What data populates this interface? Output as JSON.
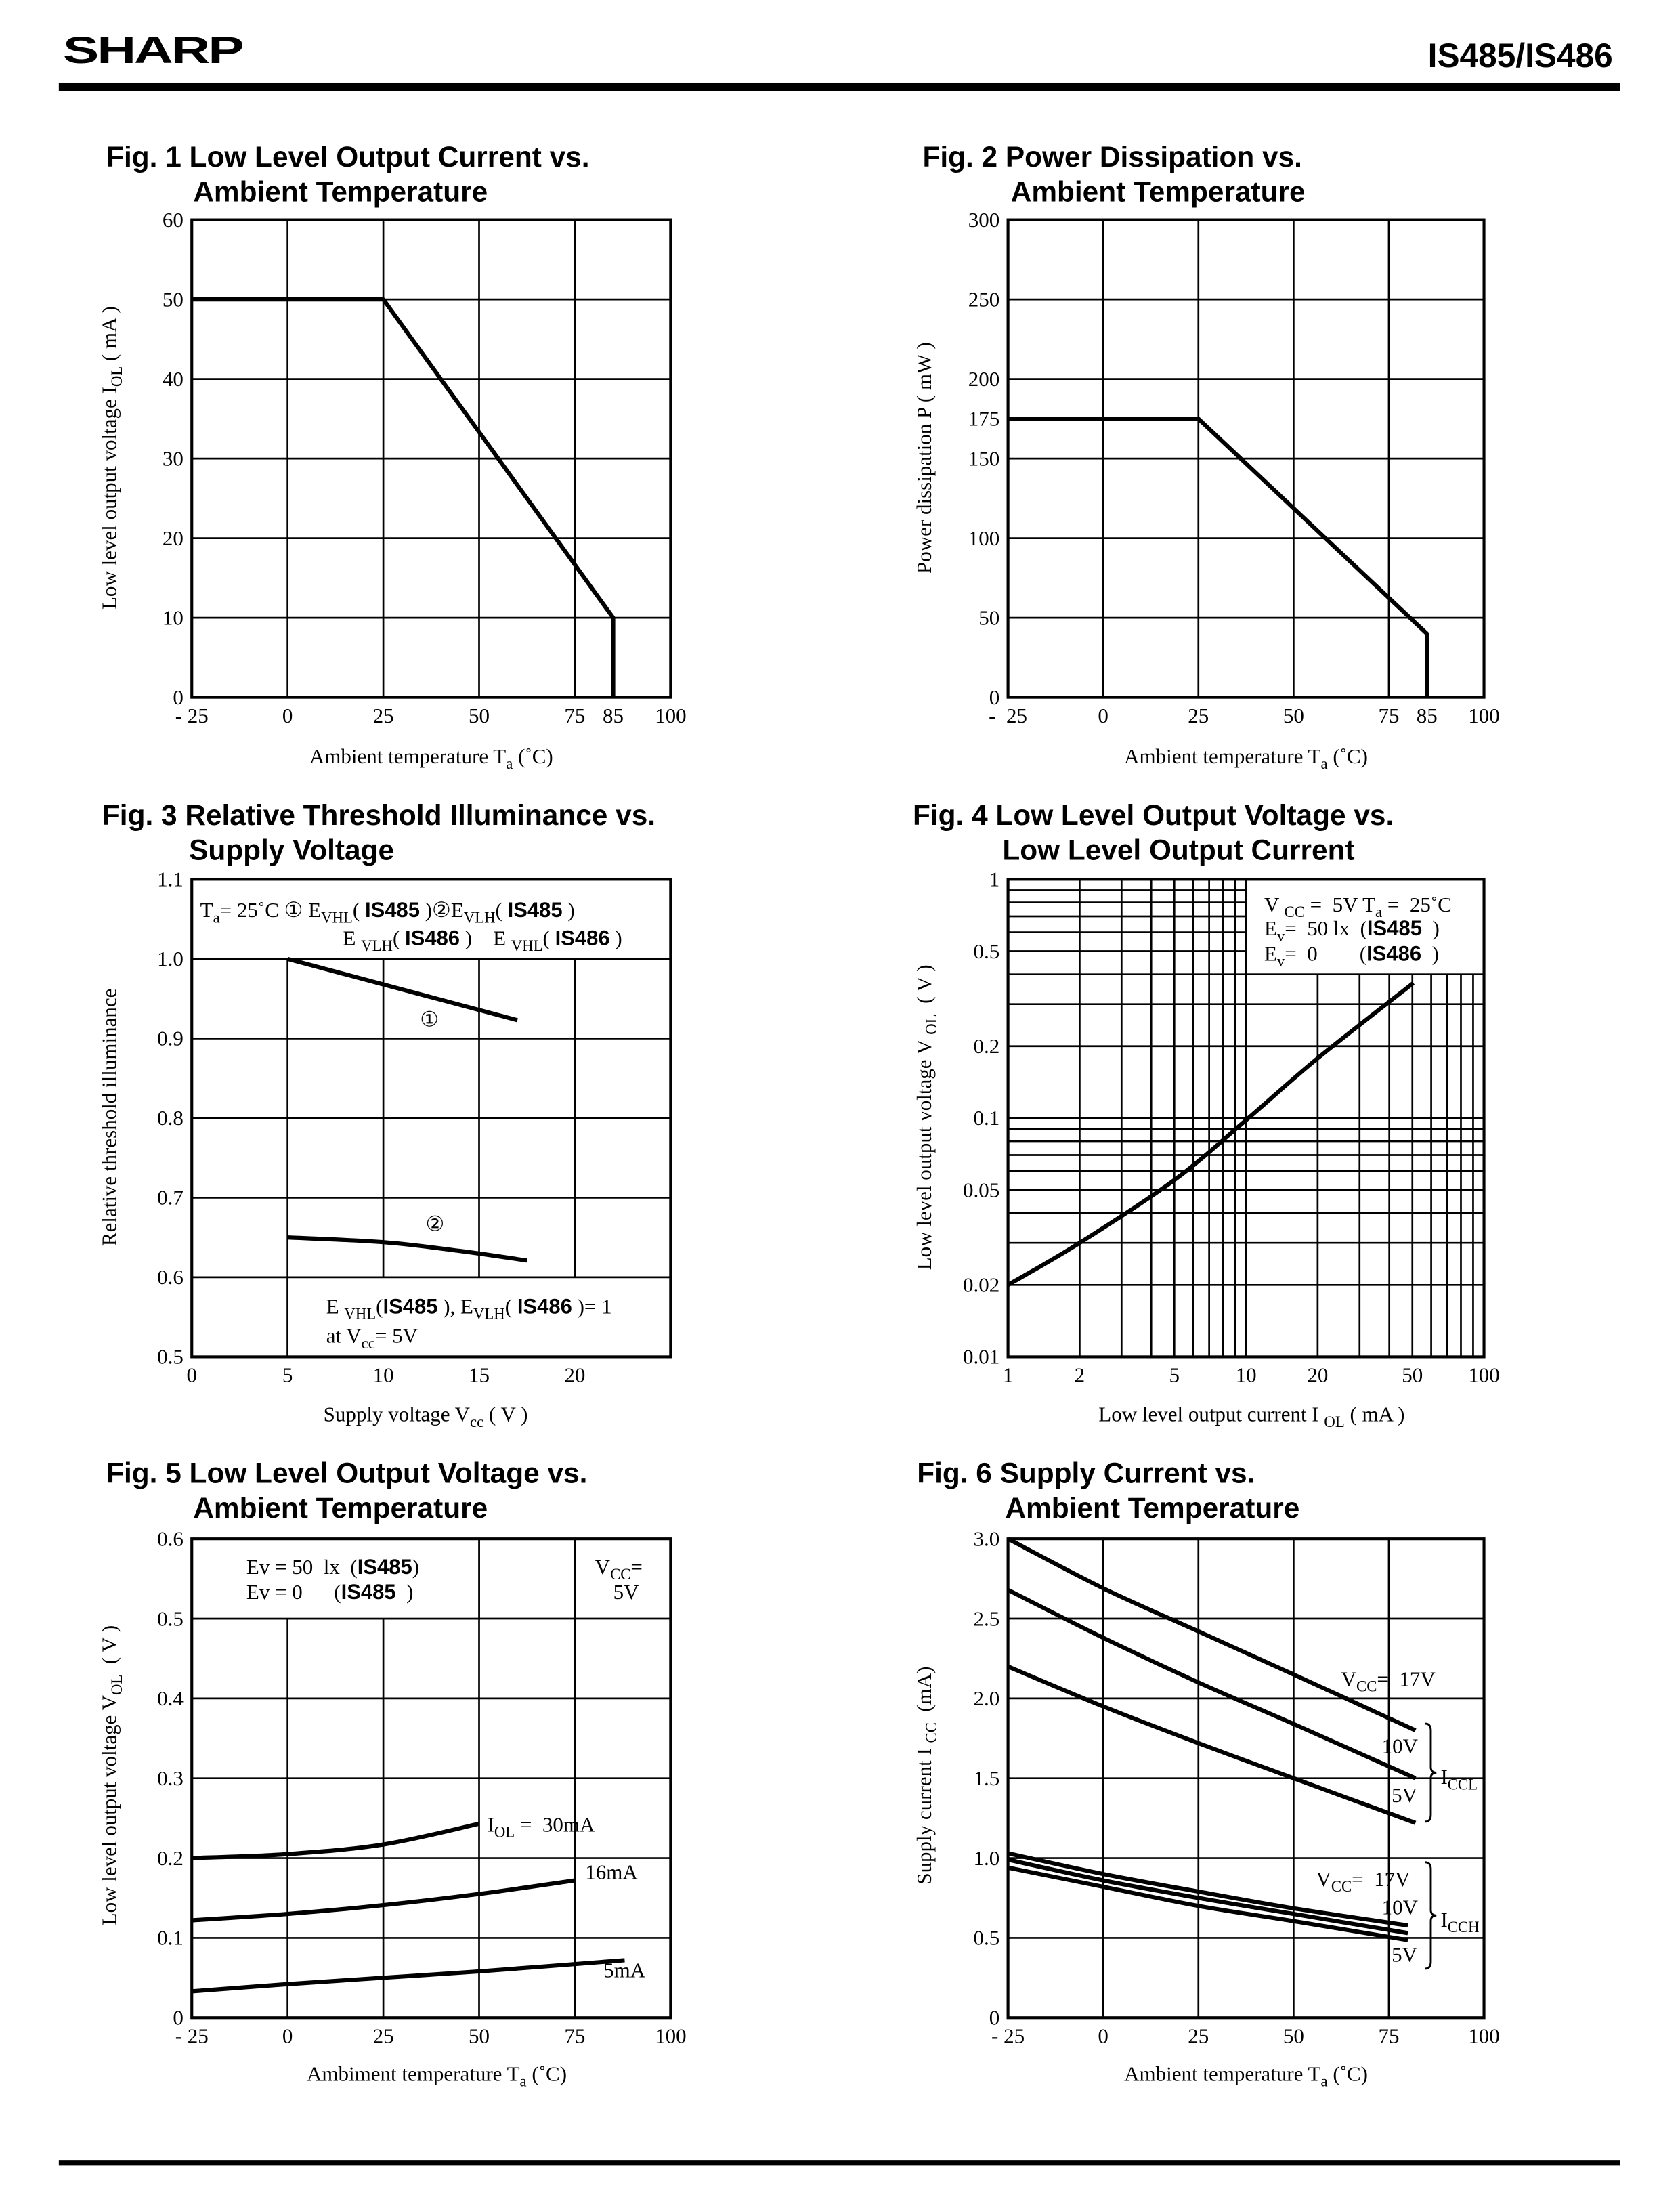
{
  "header": {
    "logo": "SHARP",
    "part_number": "IS485/IS486"
  },
  "chart_data": [
    {
      "type": "line",
      "title": [
        "Fig. 1 Low Level Output Current vs.",
        "Ambient Temperature"
      ],
      "xlabel": [
        [
          "Ambient temperature T",
          "n"
        ],
        [
          "a",
          "s"
        ],
        [
          " (˚C)",
          "n"
        ]
      ],
      "ylabel": [
        [
          "Low level output voltage I",
          "n"
        ],
        [
          "OL",
          "s"
        ],
        [
          " ( mA )",
          "n"
        ]
      ],
      "xlim": [
        -25,
        100
      ],
      "ylim": [
        0,
        60
      ],
      "xscale": "linear",
      "yscale": "linear",
      "grid": true,
      "xticks": [
        [
          -25,
          "- 25"
        ],
        [
          0,
          "0"
        ],
        [
          25,
          "25"
        ],
        [
          50,
          "50"
        ],
        [
          75,
          "75"
        ],
        [
          85,
          "85"
        ],
        [
          100,
          "100"
        ]
      ],
      "yticks": [
        [
          0,
          "0"
        ],
        [
          10,
          "10"
        ],
        [
          20,
          "20"
        ],
        [
          30,
          "30"
        ],
        [
          40,
          "40"
        ],
        [
          50,
          "50"
        ],
        [
          60,
          "60"
        ]
      ],
      "series": [
        {
          "name": "I_OL",
          "x": [
            -25,
            25,
            85,
            85
          ],
          "y": [
            50,
            50,
            10,
            0
          ],
          "smooth": false
        }
      ],
      "annotations": {}
    },
    {
      "type": "line",
      "title": [
        "Fig. 2 Power Dissipation vs.",
        "Ambient Temperature"
      ],
      "xlabel": [
        [
          "Ambient temperature T",
          "n"
        ],
        [
          "a",
          "s"
        ],
        [
          " (˚C)",
          "n"
        ]
      ],
      "ylabel": [
        [
          "Power dissipation P ( mW )",
          "n"
        ]
      ],
      "xlim": [
        -25,
        100
      ],
      "ylim": [
        0,
        300
      ],
      "xscale": "linear",
      "yscale": "linear",
      "grid": true,
      "xticks": [
        [
          -25,
          "-  25"
        ],
        [
          0,
          "0"
        ],
        [
          25,
          "25"
        ],
        [
          50,
          "50"
        ],
        [
          75,
          "75"
        ],
        [
          85,
          "85"
        ],
        [
          100,
          "100"
        ]
      ],
      "yticks": [
        [
          0,
          "0"
        ],
        [
          50,
          "50"
        ],
        [
          100,
          "100"
        ],
        [
          150,
          "150"
        ],
        [
          175,
          "175"
        ],
        [
          200,
          "200"
        ],
        [
          250,
          "250"
        ],
        [
          300,
          "300"
        ]
      ],
      "series": [
        {
          "name": "P",
          "x": [
            -25,
            25,
            85,
            85
          ],
          "y": [
            175,
            175,
            40,
            0
          ],
          "smooth": false
        }
      ],
      "annotations": {}
    },
    {
      "type": "line",
      "title": [
        "Fig. 3 Relative Threshold Illuminance vs.",
        "Supply Voltage"
      ],
      "xlabel": [
        [
          "Supply voltage V",
          "n"
        ],
        [
          "cc",
          "s"
        ],
        [
          " ( V )",
          "n"
        ]
      ],
      "ylabel": [
        [
          "Relative threshold illuminance",
          "n"
        ]
      ],
      "xlim": [
        0,
        25
      ],
      "ylim": [
        0.5,
        1.1
      ],
      "xscale": "linear",
      "yscale": "linear",
      "grid": true,
      "xticks": [
        [
          0,
          "0"
        ],
        [
          5,
          "5"
        ],
        [
          10,
          "10"
        ],
        [
          15,
          "15"
        ],
        [
          20,
          "20"
        ]
      ],
      "yticks": [
        [
          0.5,
          "0.5"
        ],
        [
          0.6,
          "0.6"
        ],
        [
          0.7,
          "0.7"
        ],
        [
          0.8,
          "0.8"
        ],
        [
          0.9,
          "0.9"
        ],
        [
          1.0,
          "1.0"
        ],
        [
          1.1,
          "1.1"
        ]
      ],
      "series": [
        {
          "name": "①",
          "x": [
            5,
            17
          ],
          "y": [
            1.0,
            0.923
          ],
          "smooth": false
        },
        {
          "name": "②",
          "x": [
            5,
            10,
            14,
            17.5
          ],
          "y": [
            0.65,
            0.644,
            0.633,
            0.621
          ],
          "smooth": true
        }
      ],
      "annotations": {
        "legend_line1": [
          [
            "T",
            "n"
          ],
          [
            "a",
            "s"
          ],
          [
            "= 25˚C ① E",
            "n"
          ],
          [
            "VHL",
            "s"
          ],
          [
            "( ",
            "n"
          ],
          [
            "IS485",
            "b"
          ],
          [
            " )②E",
            "n"
          ],
          [
            "VLH",
            "s"
          ],
          [
            "( ",
            "n"
          ],
          [
            "IS485",
            "b"
          ],
          [
            " )",
            "n"
          ]
        ],
        "legend_line2": [
          [
            "E ",
            "n"
          ],
          [
            "VLH",
            "s"
          ],
          [
            "( ",
            "n"
          ],
          [
            "IS486",
            "b"
          ],
          [
            " )    E ",
            "n"
          ],
          [
            "VHL",
            "s"
          ],
          [
            "( ",
            "n"
          ],
          [
            "IS486",
            "b"
          ],
          [
            " )",
            "n"
          ]
        ],
        "curve1_label": [
          [
            "①",
            "n"
          ]
        ],
        "curve2_label": [
          [
            "②",
            "n"
          ]
        ],
        "note_line1": [
          [
            "E ",
            "n"
          ],
          [
            "VHL",
            "s"
          ],
          [
            "(",
            "n"
          ],
          [
            "IS485",
            "b"
          ],
          [
            " ), E",
            "n"
          ],
          [
            "VLH",
            "s"
          ],
          [
            "( ",
            "n"
          ],
          [
            "IS486",
            "b"
          ],
          [
            " )= 1",
            "n"
          ]
        ],
        "note_line2": [
          [
            "at V",
            "n"
          ],
          [
            "cc",
            "s"
          ],
          [
            "= 5V",
            "n"
          ]
        ]
      }
    },
    {
      "type": "line",
      "title": [
        "Fig. 4 Low Level Output Voltage vs.",
        "Low Level Output Current"
      ],
      "xlabel": [
        [
          "Low level output current I ",
          "n"
        ],
        [
          "OL",
          "s"
        ],
        [
          " ( mA )",
          "n"
        ]
      ],
      "ylabel": [
        [
          "Low level output voltage V ",
          "n"
        ],
        [
          "OL",
          "s"
        ],
        [
          "  ( V )",
          "n"
        ]
      ],
      "xlim": [
        1,
        100
      ],
      "ylim": [
        0.01,
        1
      ],
      "xscale": "log",
      "yscale": "log",
      "grid": true,
      "xticks": [
        [
          1,
          "1"
        ],
        [
          2,
          "2"
        ],
        [
          5,
          "5"
        ],
        [
          10,
          "10"
        ],
        [
          20,
          "20"
        ],
        [
          50,
          "50"
        ],
        [
          100,
          "100"
        ]
      ],
      "yticks": [
        [
          0.01,
          "0.01"
        ],
        [
          0.02,
          "0.02"
        ],
        [
          0.05,
          "0.05"
        ],
        [
          0.1,
          "0.1"
        ],
        [
          0.2,
          "0.2"
        ],
        [
          0.5,
          "0.5"
        ],
        [
          1,
          "1"
        ]
      ],
      "series": [
        {
          "name": "V_OL",
          "x": [
            1,
            2,
            5,
            10,
            20,
            50.5
          ],
          "y": [
            0.02,
            0.03,
            0.055,
            0.098,
            0.178,
            0.368
          ],
          "smooth": true
        }
      ],
      "annotations": {
        "legend_line1": [
          [
            "V ",
            "n"
          ],
          [
            "CC",
            "s"
          ],
          [
            " =  5V T",
            "n"
          ],
          [
            "a",
            "s"
          ],
          [
            " =  25˚C",
            "n"
          ]
        ],
        "legend_line2": [
          [
            "E",
            "n"
          ],
          [
            "v",
            "s"
          ],
          [
            "=  50 lx  (",
            "n"
          ],
          [
            "IS485",
            "b"
          ],
          [
            "  )",
            "n"
          ]
        ],
        "legend_line3": [
          [
            "E",
            "n"
          ],
          [
            "v",
            "s"
          ],
          [
            "=  0        (",
            "n"
          ],
          [
            "IS486",
            "b"
          ],
          [
            "  )",
            "n"
          ]
        ]
      }
    },
    {
      "type": "line",
      "title": [
        "Fig. 5 Low Level Output Voltage vs.",
        "Ambient Temperature"
      ],
      "xlabel": [
        [
          "Ambiment temperature T",
          "n"
        ],
        [
          "a",
          "s"
        ],
        [
          " (˚C)",
          "n"
        ]
      ],
      "ylabel": [
        [
          "Low level output voltage V",
          "n"
        ],
        [
          "OL",
          "s"
        ],
        [
          "  ( V )",
          "n"
        ]
      ],
      "xlim": [
        -25,
        100
      ],
      "ylim": [
        0,
        0.6
      ],
      "xscale": "linear",
      "yscale": "linear",
      "grid": true,
      "xticks": [
        [
          -25,
          "- 25"
        ],
        [
          0,
          "0"
        ],
        [
          25,
          "25"
        ],
        [
          50,
          "50"
        ],
        [
          75,
          "75"
        ],
        [
          100,
          "100"
        ]
      ],
      "yticks": [
        [
          0,
          "0"
        ],
        [
          0.1,
          "0.1"
        ],
        [
          0.2,
          "0.2"
        ],
        [
          0.3,
          "0.3"
        ],
        [
          0.4,
          "0.4"
        ],
        [
          0.5,
          "0.5"
        ],
        [
          0.6,
          "0.6"
        ]
      ],
      "series": [
        {
          "name": "30mA",
          "x": [
            -25,
            0,
            25,
            50
          ],
          "y": [
            0.2,
            0.205,
            0.217,
            0.243
          ],
          "smooth": true
        },
        {
          "name": "16mA",
          "x": [
            -25,
            0,
            25,
            50,
            75
          ],
          "y": [
            0.122,
            0.13,
            0.141,
            0.155,
            0.172
          ],
          "smooth": true
        },
        {
          "name": "5mA",
          "x": [
            -25,
            0,
            25,
            50,
            88
          ],
          "y": [
            0.033,
            0.042,
            0.05,
            0.058,
            0.072
          ],
          "smooth": true
        }
      ],
      "annotations": {
        "legend_line1": [
          [
            "Ev = 50  lx  (",
            "n"
          ],
          [
            "IS485",
            "b"
          ],
          [
            ")",
            "n"
          ]
        ],
        "legend_line2": [
          [
            "Ev = 0      (",
            "n"
          ],
          [
            "IS485",
            "b"
          ],
          [
            "  )",
            "n"
          ]
        ],
        "vcc_line1": [
          [
            "V",
            "n"
          ],
          [
            "CC",
            "s"
          ],
          [
            "=",
            "n"
          ]
        ],
        "vcc_line2": [
          [
            "5V",
            "n"
          ]
        ],
        "label_30mA": [
          [
            "I",
            "n"
          ],
          [
            "OL",
            "s"
          ],
          [
            " =  30mA",
            "n"
          ]
        ],
        "label_16mA": [
          [
            "16mA",
            "n"
          ]
        ],
        "label_5mA": [
          [
            "5mA",
            "n"
          ]
        ]
      }
    },
    {
      "type": "line",
      "title": [
        "Fig. 6 Supply Current vs.",
        "Ambient Temperature"
      ],
      "xlabel": [
        [
          "Ambient temperature T",
          "n"
        ],
        [
          "a",
          "s"
        ],
        [
          " (˚C)",
          "n"
        ]
      ],
      "ylabel": [
        [
          "Supply current I ",
          "n"
        ],
        [
          "CC",
          "s"
        ],
        [
          "  (mA)",
          "n"
        ]
      ],
      "xlim": [
        -25,
        100
      ],
      "ylim": [
        0,
        3.0
      ],
      "xscale": "linear",
      "yscale": "linear",
      "grid": true,
      "xticks": [
        [
          -25,
          "- 25"
        ],
        [
          0,
          "0"
        ],
        [
          25,
          "25"
        ],
        [
          50,
          "50"
        ],
        [
          75,
          "75"
        ],
        [
          100,
          "100"
        ]
      ],
      "yticks": [
        [
          0,
          "0"
        ],
        [
          0.5,
          "0.5"
        ],
        [
          1.0,
          "1.0"
        ],
        [
          1.5,
          "1.5"
        ],
        [
          2.0,
          "2.0"
        ],
        [
          2.5,
          "2.5"
        ],
        [
          3.0,
          "3.0"
        ]
      ],
      "series": [
        {
          "name": "I_CCL 17V",
          "x": [
            -25,
            0,
            25,
            50,
            82
          ],
          "y": [
            3.0,
            2.69,
            2.42,
            2.15,
            1.8
          ],
          "smooth": true
        },
        {
          "name": "I_CCL 10V",
          "x": [
            -25,
            0,
            25,
            50,
            82
          ],
          "y": [
            2.68,
            2.38,
            2.1,
            1.84,
            1.5
          ],
          "smooth": true
        },
        {
          "name": "I_CCL 5V",
          "x": [
            -25,
            0,
            25,
            50,
            82
          ],
          "y": [
            2.2,
            1.95,
            1.72,
            1.5,
            1.22
          ],
          "smooth": true
        },
        {
          "name": "I_CCH 17V",
          "x": [
            -25,
            0,
            25,
            50,
            80
          ],
          "y": [
            1.03,
            0.9,
            0.79,
            0.685,
            0.578
          ],
          "smooth": true
        },
        {
          "name": "I_CCH 10V",
          "x": [
            -25,
            0,
            25,
            50,
            80
          ],
          "y": [
            0.99,
            0.86,
            0.75,
            0.65,
            0.53
          ],
          "smooth": true
        },
        {
          "name": "I_CCH 5V",
          "x": [
            -25,
            0,
            25,
            50,
            80
          ],
          "y": [
            0.94,
            0.82,
            0.7,
            0.605,
            0.486
          ],
          "smooth": true
        }
      ],
      "annotations": {
        "ccl_17v": [
          [
            "V",
            "n"
          ],
          [
            "CC",
            "s"
          ],
          [
            "=  17V",
            "n"
          ]
        ],
        "ccl_10v": [
          [
            "10V",
            "n"
          ]
        ],
        "ccl_5v": [
          [
            "5V",
            "n"
          ]
        ],
        "ccl_label": [
          [
            "I",
            "n"
          ],
          [
            "CCL",
            "s"
          ]
        ],
        "cch_17v": [
          [
            "V",
            "n"
          ],
          [
            "CC",
            "s"
          ],
          [
            "=  17V",
            "n"
          ]
        ],
        "cch_10v": [
          [
            "10V",
            "n"
          ]
        ],
        "cch_5v": [
          [
            "5V",
            "n"
          ]
        ],
        "cch_label": [
          [
            "I",
            "n"
          ],
          [
            "CCH",
            "s"
          ]
        ]
      }
    }
  ]
}
